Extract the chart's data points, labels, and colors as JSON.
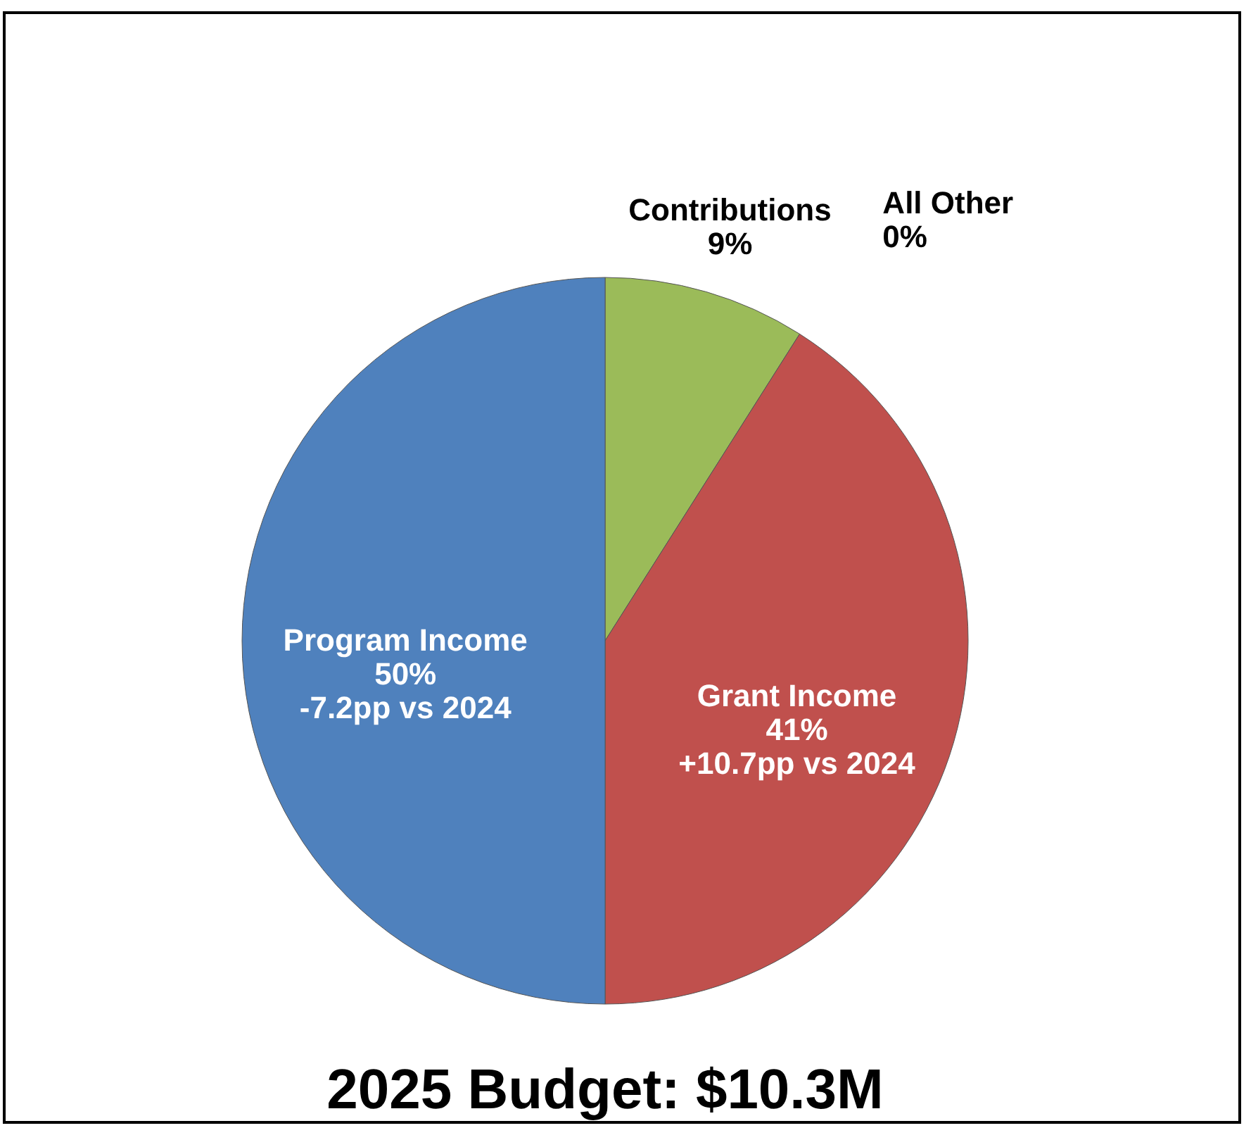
{
  "chart_data": {
    "type": "pie",
    "title": "2025 Budget:  $10.3M",
    "categories": [
      "Contributions",
      "All Other",
      "Grant Income",
      "Program Income"
    ],
    "values": [
      9,
      0,
      41,
      50
    ],
    "value_labels": [
      "9%",
      "0%",
      "41%",
      "50%"
    ],
    "colors": [
      "#9bbb59",
      "#8064a2",
      "#c0504d",
      "#4f81bd"
    ],
    "annotations": [
      {
        "text": "+10.7pp vs 2024",
        "x": "Grant Income"
      },
      {
        "text": "-7.2pp vs 2024",
        "x": "Program Income"
      }
    ],
    "legend": false
  }
}
